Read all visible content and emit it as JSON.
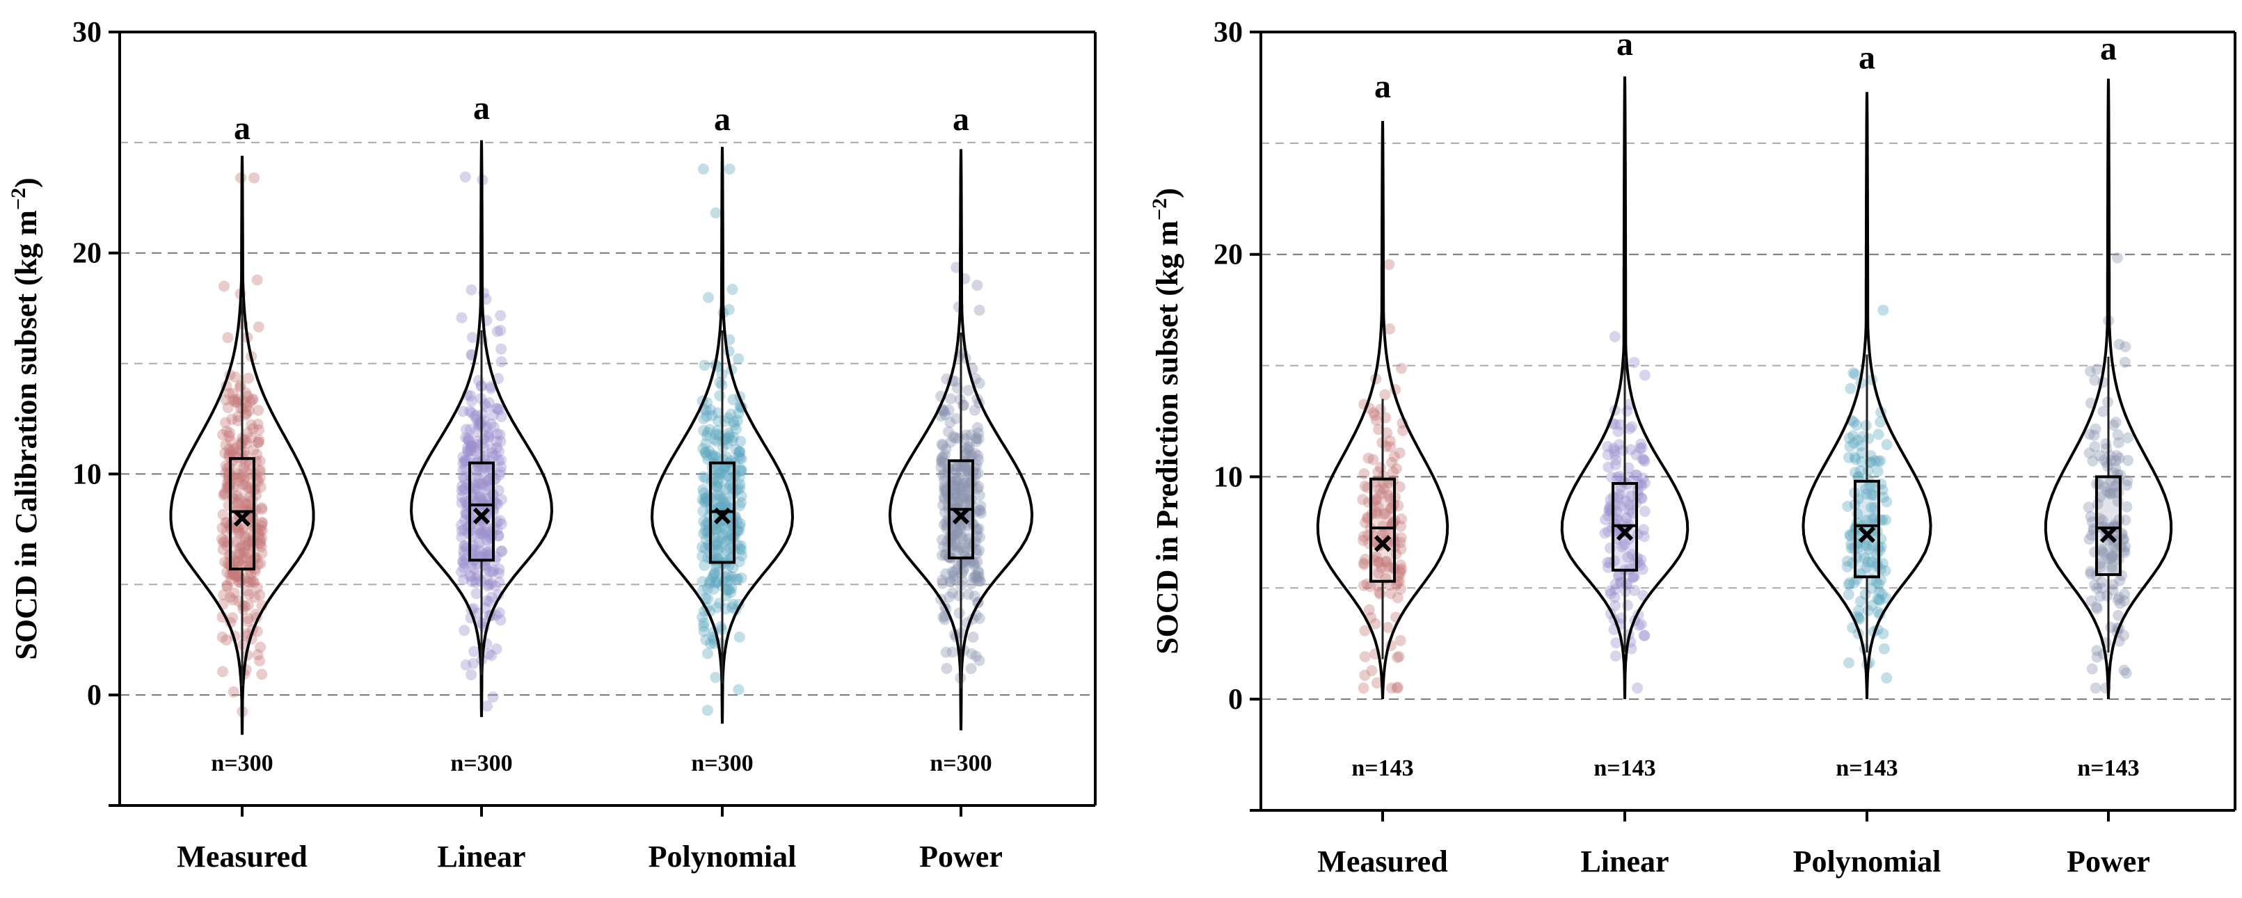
{
  "chart_data": [
    {
      "type": "violin",
      "ylabel": "SOCD in Calibration subset (kg m",
      "ylabel_sup": "−2",
      "ylabel_close": ")",
      "ylim": [
        -5,
        30
      ],
      "yticks": [
        0,
        10,
        20,
        30
      ],
      "yticks_minor_grid": [
        5,
        15,
        25
      ],
      "grid": true,
      "categories": [
        "Measured",
        "Linear",
        "Polynomial",
        "Power"
      ],
      "n_labels": [
        "n=300",
        "n=300",
        "n=300",
        "n=300"
      ],
      "significance": [
        "a",
        "a",
        "a",
        "a"
      ],
      "colors": [
        "#c47a7a",
        "#9a8fcc",
        "#5ea9c0",
        "#8a93ad"
      ],
      "series": [
        {
          "name": "Measured",
          "mean": 8.0,
          "q1": 5.7,
          "median": 8.3,
          "q3": 10.7,
          "whisker_low": 0.4,
          "whisker_high": 18.0,
          "violin_min": -1.8,
          "violin_max": 24.4,
          "sig_y": 25.6
        },
        {
          "name": "Linear",
          "mean": 8.1,
          "q1": 6.1,
          "median": 8.6,
          "q3": 10.5,
          "whisker_low": 0.9,
          "whisker_high": 16.5,
          "violin_min": -1.0,
          "violin_max": 25.1,
          "sig_y": 26.5
        },
        {
          "name": "Polynomial",
          "mean": 8.1,
          "q1": 6.0,
          "median": 8.3,
          "q3": 10.5,
          "whisker_low": 0.5,
          "whisker_high": 16.5,
          "violin_min": -1.3,
          "violin_max": 24.8,
          "sig_y": 26.0
        },
        {
          "name": "Power",
          "mean": 8.1,
          "q1": 6.2,
          "median": 8.4,
          "q3": 10.6,
          "whisker_low": 0.3,
          "whisker_high": 16.4,
          "violin_min": -1.6,
          "violin_max": 24.7,
          "sig_y": 26.0
        }
      ]
    },
    {
      "type": "violin",
      "ylabel": "SOCD in Prediction subset (kg m",
      "ylabel_sup": "−2",
      "ylabel_close": ")",
      "ylim": [
        -5,
        30
      ],
      "yticks": [
        0,
        10,
        20,
        30
      ],
      "yticks_minor_grid": [
        5,
        15,
        25
      ],
      "grid": true,
      "categories": [
        "Measured",
        "Linear",
        "Polynomial",
        "Power"
      ],
      "n_labels": [
        "n=143",
        "n=143",
        "n=143",
        "n=143"
      ],
      "significance": [
        "a",
        "a",
        "a",
        "a"
      ],
      "colors": [
        "#c47a7a",
        "#9a8fcc",
        "#5ea9c0",
        "#8a93ad"
      ],
      "series": [
        {
          "name": "Measured",
          "mean": 7.0,
          "q1": 5.3,
          "median": 7.7,
          "q3": 9.9,
          "whisker_low": 1.8,
          "whisker_high": 13.5,
          "violin_min": 0.0,
          "violin_max": 26.0,
          "sig_y": 27.5
        },
        {
          "name": "Linear",
          "mean": 7.5,
          "q1": 5.8,
          "median": 7.8,
          "q3": 9.7,
          "whisker_low": 2.1,
          "whisker_high": 15.4,
          "violin_min": 0.0,
          "violin_max": 28.0,
          "sig_y": 29.4
        },
        {
          "name": "Polynomial",
          "mean": 7.4,
          "q1": 5.5,
          "median": 7.8,
          "q3": 9.8,
          "whisker_low": 2.1,
          "whisker_high": 15.5,
          "violin_min": 0.0,
          "violin_max": 27.3,
          "sig_y": 28.8
        },
        {
          "name": "Power",
          "mean": 7.4,
          "q1": 5.6,
          "median": 7.7,
          "q3": 10.0,
          "whisker_low": 2.1,
          "whisker_high": 15.4,
          "violin_min": 0.0,
          "violin_max": 27.9,
          "sig_y": 29.2
        }
      ]
    }
  ]
}
